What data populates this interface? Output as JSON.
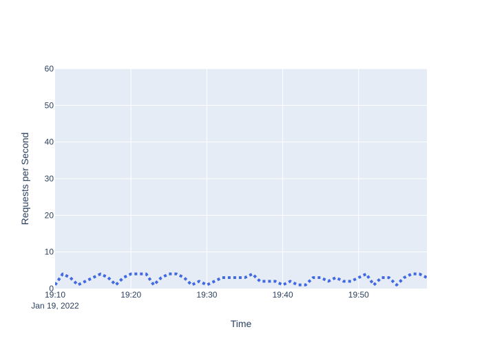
{
  "chart_data": {
    "type": "line",
    "title": "",
    "xlabel": "Time",
    "ylabel": "Requests per Second",
    "ylim": [
      0,
      60
    ],
    "yticks": [
      0,
      10,
      20,
      30,
      40,
      50,
      60
    ],
    "yticks_labels": [
      "0",
      "10",
      "20",
      "30",
      "40",
      "50",
      "60"
    ],
    "xlim": [
      "2022-01-19 19:10:00",
      "2022-01-19 19:59:00"
    ],
    "xticks": [
      "2022-01-19 19:10:00",
      "2022-01-19 19:20:00",
      "2022-01-19 19:30:00",
      "2022-01-19 19:40:00",
      "2022-01-19 19:50:00"
    ],
    "xticks_labels": [
      "19:10",
      "19:20",
      "19:30",
      "19:40",
      "19:50"
    ],
    "x_date_label": "Jan 19, 2022",
    "grid": true,
    "legend": "none",
    "colors": {
      "background": "#E5ECF6",
      "grid": "#FFFFFF",
      "line": "#4169E1",
      "text": "#2a3f5f"
    },
    "line_style": "dotted",
    "series": [
      {
        "x": [
          "2022-01-19 19:10:00",
          "2022-01-19 19:11:00",
          "2022-01-19 19:12:00",
          "2022-01-19 19:13:00",
          "2022-01-19 19:14:00",
          "2022-01-19 19:15:00",
          "2022-01-19 19:16:00",
          "2022-01-19 19:17:00",
          "2022-01-19 19:18:00",
          "2022-01-19 19:19:00",
          "2022-01-19 19:20:00",
          "2022-01-19 19:21:00",
          "2022-01-19 19:22:00",
          "2022-01-19 19:23:00",
          "2022-01-19 19:24:00",
          "2022-01-19 19:25:00",
          "2022-01-19 19:26:00",
          "2022-01-19 19:27:00",
          "2022-01-19 19:28:00",
          "2022-01-19 19:29:00",
          "2022-01-19 19:30:00",
          "2022-01-19 19:31:00",
          "2022-01-19 19:32:00",
          "2022-01-19 19:33:00",
          "2022-01-19 19:34:00",
          "2022-01-19 19:35:00",
          "2022-01-19 19:36:00",
          "2022-01-19 19:37:00",
          "2022-01-19 19:38:00",
          "2022-01-19 19:39:00",
          "2022-01-19 19:40:00",
          "2022-01-19 19:41:00",
          "2022-01-19 19:42:00",
          "2022-01-19 19:43:00",
          "2022-01-19 19:44:00",
          "2022-01-19 19:45:00",
          "2022-01-19 19:46:00",
          "2022-01-19 19:47:00",
          "2022-01-19 19:48:00",
          "2022-01-19 19:49:00",
          "2022-01-19 19:50:00",
          "2022-01-19 19:51:00",
          "2022-01-19 19:52:00",
          "2022-01-19 19:53:00",
          "2022-01-19 19:54:00",
          "2022-01-19 19:55:00",
          "2022-01-19 19:56:00",
          "2022-01-19 19:57:00",
          "2022-01-19 19:58:00",
          "2022-01-19 19:59:00"
        ],
        "y": [
          1,
          4,
          3,
          1,
          2,
          3,
          4,
          3,
          1,
          3,
          4,
          4,
          4,
          1,
          3,
          4,
          4,
          3,
          1,
          2,
          1,
          2,
          3,
          3,
          3,
          3,
          4,
          2,
          2,
          2,
          1,
          2,
          1,
          1,
          3,
          3,
          2,
          3,
          2,
          2,
          3,
          4,
          1,
          3,
          3,
          1,
          3,
          4,
          4,
          3
        ]
      }
    ]
  }
}
